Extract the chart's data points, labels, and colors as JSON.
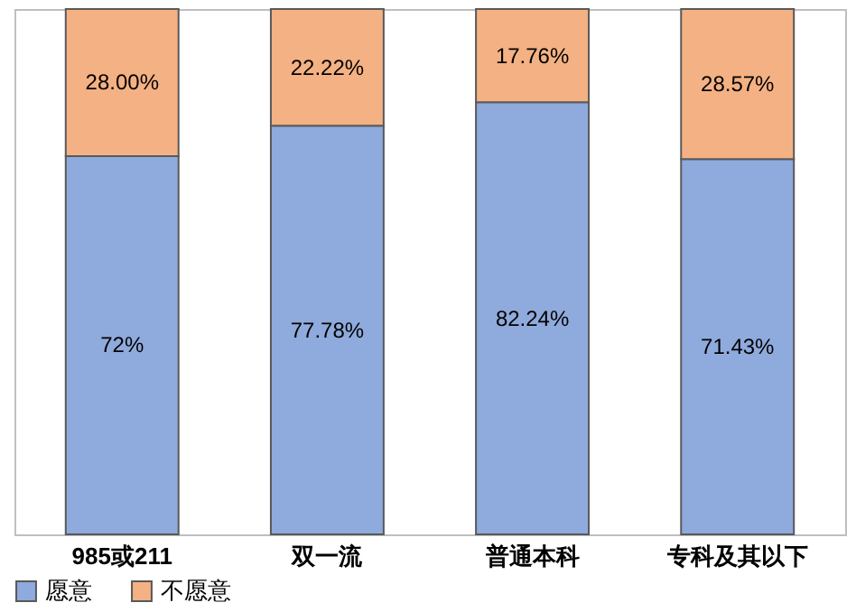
{
  "chart_data": {
    "type": "bar",
    "stacked": true,
    "categories": [
      "985或211",
      "双一流",
      "普通本科",
      "专科及其以下"
    ],
    "series": [
      {
        "name": "愿意",
        "color": "#8faadc",
        "values": [
          72,
          77.78,
          82.24,
          71.43
        ],
        "value_labels": [
          "72%",
          "77.78%",
          "82.24%",
          "71.43%"
        ]
      },
      {
        "name": "不愿意",
        "color": "#f4b183",
        "values": [
          28.0,
          22.22,
          17.76,
          28.57
        ],
        "value_labels": [
          "28.00%",
          "22.22%",
          "17.76%",
          "28.57%"
        ]
      }
    ],
    "ylim": [
      0,
      100
    ],
    "tick_labels": "x",
    "legend": "bottom"
  }
}
